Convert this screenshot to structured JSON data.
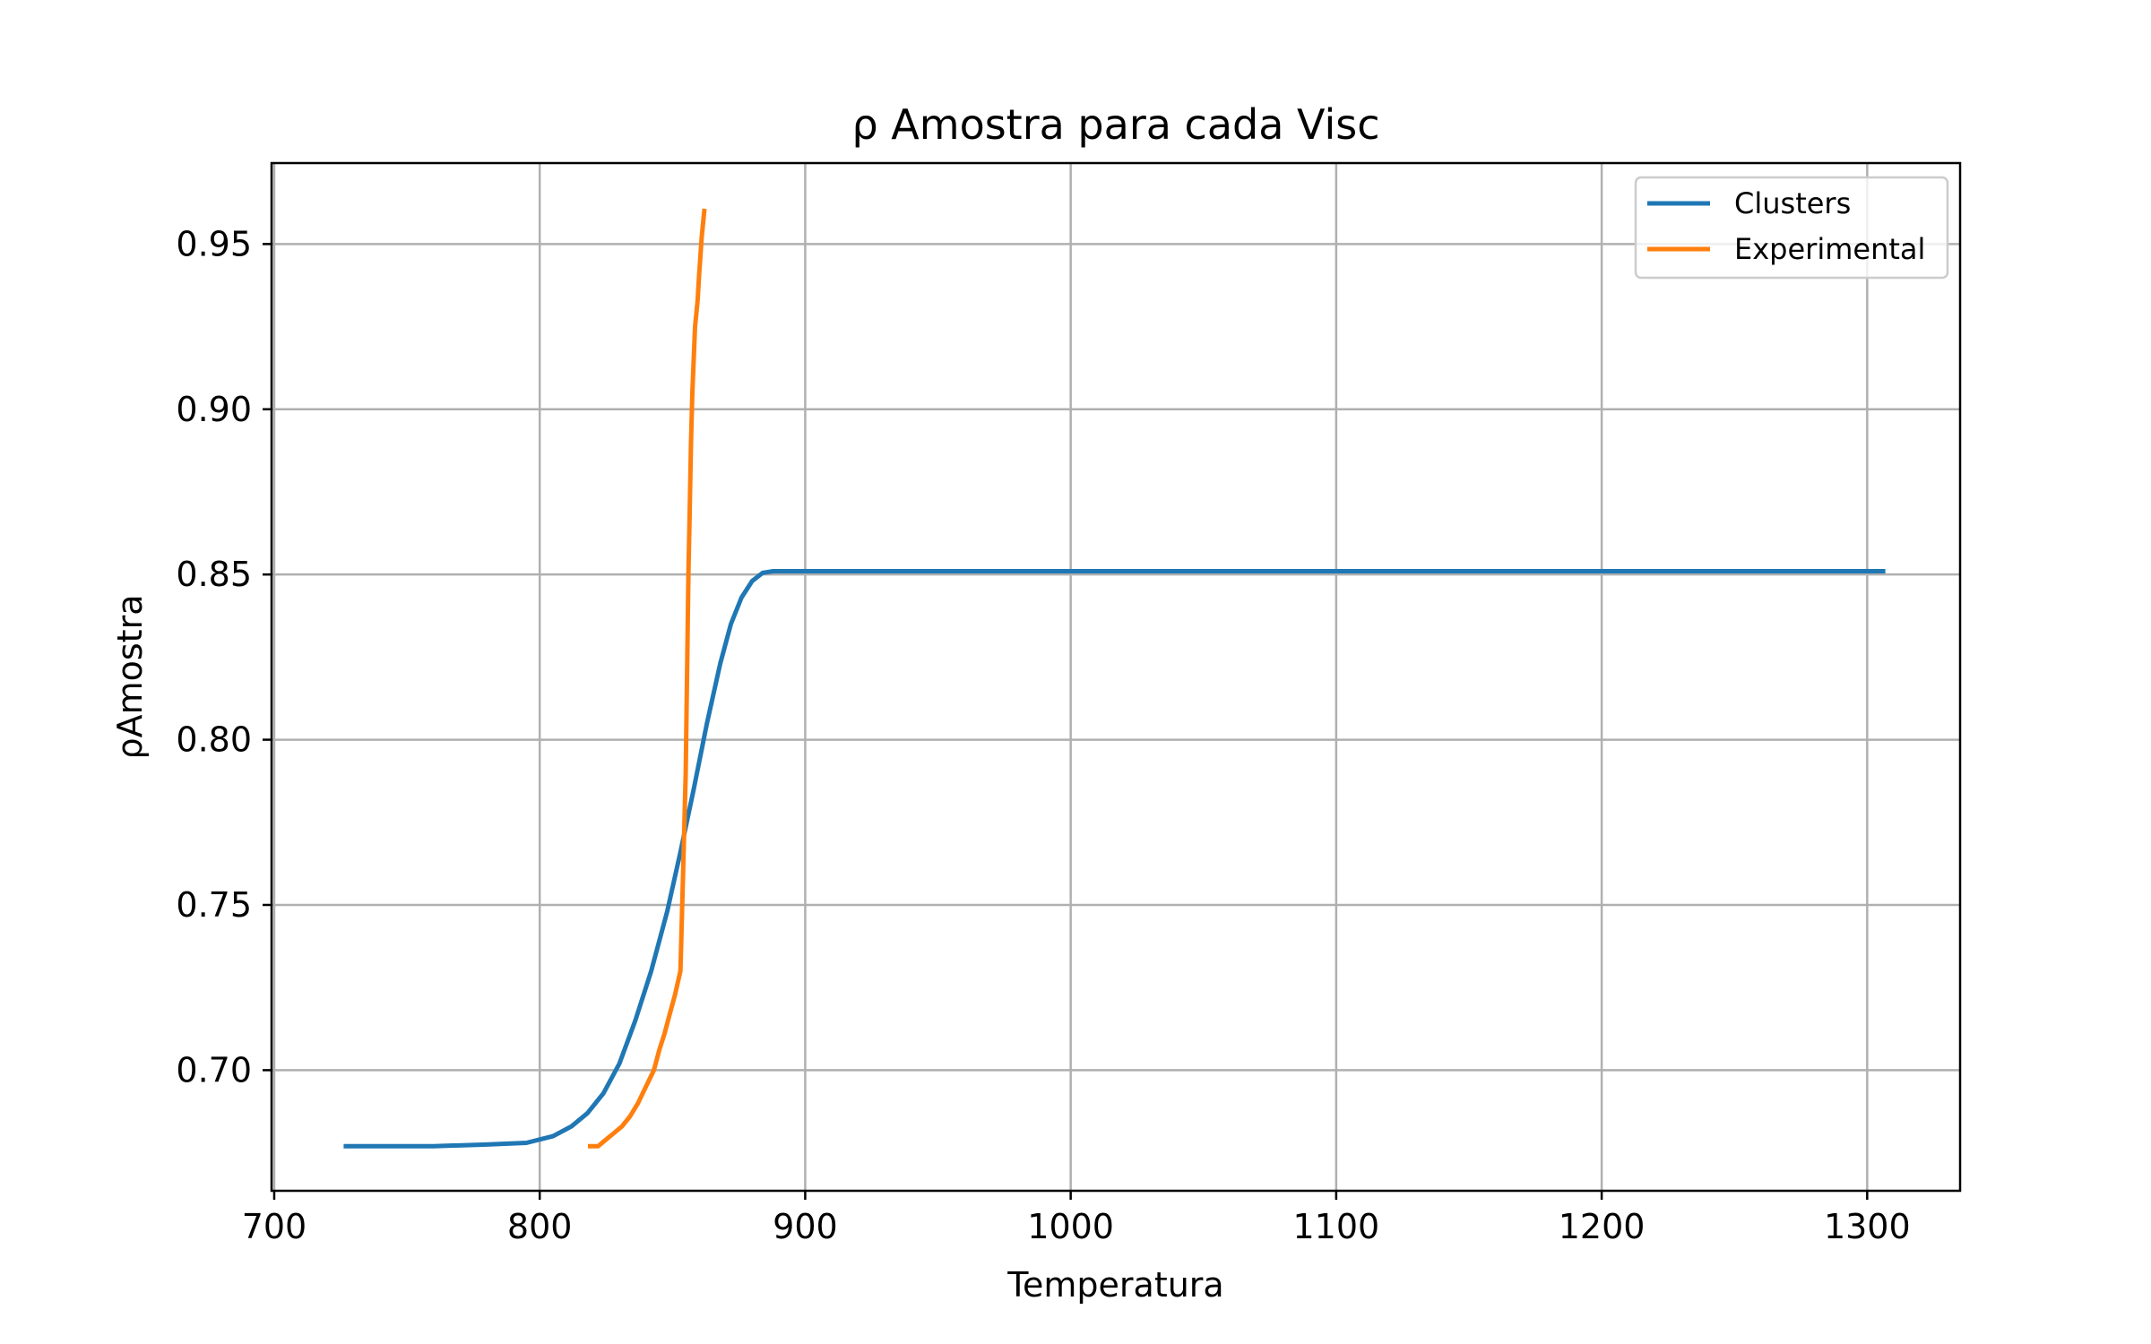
{
  "chart_data": {
    "type": "line",
    "title": "ρ Amostra para cada Visc",
    "xlabel": "Temperatura",
    "ylabel": "ρAmostra",
    "xlim": [
      699,
      1335
    ],
    "ylim": [
      0.6635,
      0.9745
    ],
    "xticks": [
      700,
      800,
      900,
      1000,
      1100,
      1200,
      1300
    ],
    "xtick_labels": [
      "700",
      "800",
      "900",
      "1000",
      "1100",
      "1200",
      "1300"
    ],
    "yticks": [
      0.7,
      0.75,
      0.8,
      0.85,
      0.9,
      0.95
    ],
    "ytick_labels": [
      "0.70",
      "0.75",
      "0.80",
      "0.85",
      "0.90",
      "0.95"
    ],
    "grid": true,
    "legend_position": "top-right",
    "series": [
      {
        "name": "Clusters",
        "color": "#1f77b4",
        "x": [
          727,
          760,
          780,
          795,
          805,
          812,
          818,
          824,
          830,
          836,
          842,
          848,
          853,
          858,
          863,
          868,
          872,
          876,
          880,
          884,
          888,
          900,
          1000,
          1100,
          1200,
          1306
        ],
        "y": [
          0.677,
          0.677,
          0.6775,
          0.678,
          0.68,
          0.683,
          0.687,
          0.693,
          0.702,
          0.715,
          0.73,
          0.748,
          0.766,
          0.785,
          0.805,
          0.823,
          0.835,
          0.843,
          0.848,
          0.8505,
          0.851,
          0.851,
          0.851,
          0.851,
          0.851,
          0.851
        ]
      },
      {
        "name": "Experimental",
        "color": "#ff7f0e",
        "x": [
          819,
          822,
          825,
          828,
          831,
          834,
          837,
          840,
          843,
          845,
          847,
          849,
          851,
          853,
          854,
          855,
          855.5,
          856,
          856.5,
          857,
          857.5,
          858,
          858.5,
          859.5,
          860,
          860.5,
          861,
          862
        ],
        "y": [
          0.677,
          0.677,
          0.679,
          0.681,
          0.683,
          0.686,
          0.69,
          0.695,
          0.7,
          0.706,
          0.711,
          0.717,
          0.723,
          0.73,
          0.76,
          0.79,
          0.82,
          0.85,
          0.87,
          0.89,
          0.905,
          0.915,
          0.925,
          0.933,
          0.94,
          0.946,
          0.952,
          0.96
        ]
      }
    ]
  }
}
